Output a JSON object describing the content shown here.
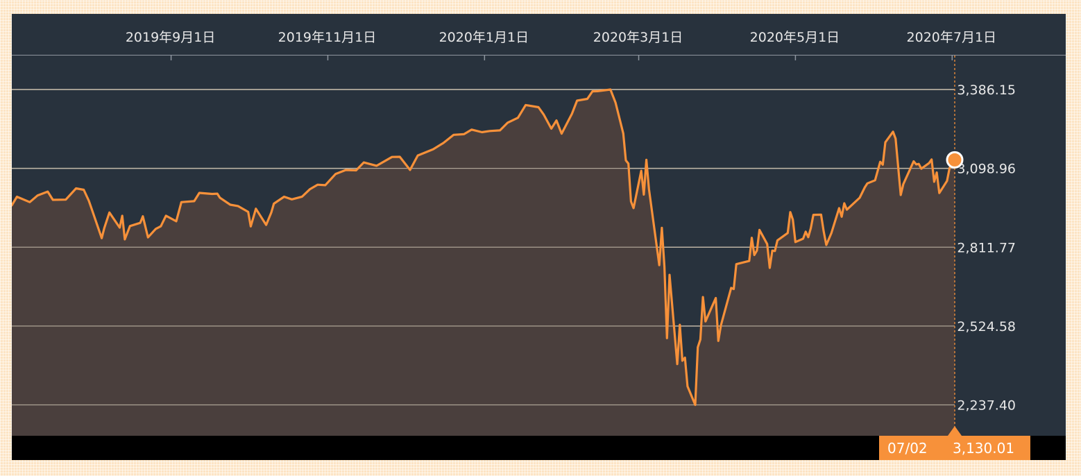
{
  "chart_data": {
    "type": "area",
    "x_tick_labels": [
      "2019年9月1日",
      "2019年11月1日",
      "2020年1月1日",
      "2020年3月1日",
      "2020年5月1日",
      "2020年7月1日"
    ],
    "y_tick_labels": [
      "3,386.15",
      "3,098.96",
      "2,811.77",
      "2,524.58",
      "2,237.40"
    ],
    "y_ticks": [
      3386.15,
      3098.96,
      2811.77,
      2524.58,
      2237.4
    ],
    "ylim": [
      2125,
      3510
    ],
    "xlim": [
      "2019-07-01",
      "2020-07-02"
    ],
    "grid": true,
    "colors": {
      "line": "#f7913a",
      "fill": "#4a3f3d",
      "background": "#28323d",
      "grid": "#c9c0b0"
    },
    "series": [
      {
        "points": [
          [
            "2019-07-01",
            2964.3
          ],
          [
            "2019-07-03",
            2995.8
          ],
          [
            "2019-07-08",
            2975.9
          ],
          [
            "2019-07-11",
            2999.9
          ],
          [
            "2019-07-15",
            3014.3
          ],
          [
            "2019-07-17",
            2984.4
          ],
          [
            "2019-07-22",
            2985.0
          ],
          [
            "2019-07-26",
            3025.9
          ],
          [
            "2019-07-29",
            3020.9
          ],
          [
            "2019-07-31",
            2980.4
          ],
          [
            "2019-08-01",
            2953.6
          ],
          [
            "2019-08-05",
            2844.7
          ],
          [
            "2019-08-06",
            2881.8
          ],
          [
            "2019-08-08",
            2938.1
          ],
          [
            "2019-08-12",
            2883.1
          ],
          [
            "2019-08-13",
            2926.3
          ],
          [
            "2019-08-14",
            2840.6
          ],
          [
            "2019-08-16",
            2888.7
          ],
          [
            "2019-08-20",
            2900.5
          ],
          [
            "2019-08-21",
            2924.4
          ],
          [
            "2019-08-23",
            2847.6
          ],
          [
            "2019-08-26",
            2878.4
          ],
          [
            "2019-08-28",
            2887.9
          ],
          [
            "2019-08-30",
            2926.5
          ],
          [
            "2019-09-03",
            2906.3
          ],
          [
            "2019-09-05",
            2976.0
          ],
          [
            "2019-09-10",
            2979.4
          ],
          [
            "2019-09-12",
            3009.6
          ],
          [
            "2019-09-17",
            3005.7
          ],
          [
            "2019-09-19",
            3006.8
          ],
          [
            "2019-09-20",
            2992.1
          ],
          [
            "2019-09-24",
            2966.6
          ],
          [
            "2019-09-27",
            2961.8
          ],
          [
            "2019-10-01",
            2940.3
          ],
          [
            "2019-10-02",
            2887.6
          ],
          [
            "2019-10-04",
            2952.0
          ],
          [
            "2019-10-08",
            2893.1
          ],
          [
            "2019-10-10",
            2938.1
          ],
          [
            "2019-10-11",
            2970.3
          ],
          [
            "2019-10-15",
            2995.7
          ],
          [
            "2019-10-18",
            2986.2
          ],
          [
            "2019-10-22",
            2995.9
          ],
          [
            "2019-10-25",
            3022.6
          ],
          [
            "2019-10-28",
            3039.4
          ],
          [
            "2019-10-31",
            3037.6
          ],
          [
            "2019-11-04",
            3078.3
          ],
          [
            "2019-11-08",
            3093.1
          ],
          [
            "2019-11-12",
            3091.8
          ],
          [
            "2019-11-15",
            3120.5
          ],
          [
            "2019-11-20",
            3108.5
          ],
          [
            "2019-11-26",
            3140.5
          ],
          [
            "2019-11-29",
            3141.0
          ],
          [
            "2019-12-03",
            3093.2
          ],
          [
            "2019-12-06",
            3145.9
          ],
          [
            "2019-12-12",
            3168.6
          ],
          [
            "2019-12-16",
            3191.5
          ],
          [
            "2019-12-20",
            3221.2
          ],
          [
            "2019-12-24",
            3223.4
          ],
          [
            "2019-12-27",
            3240.0
          ],
          [
            "2019-12-31",
            3230.8
          ],
          [
            "2020-01-03",
            3234.9
          ],
          [
            "2020-01-07",
            3237.2
          ],
          [
            "2020-01-10",
            3265.4
          ],
          [
            "2020-01-14",
            3283.2
          ],
          [
            "2020-01-17",
            3329.6
          ],
          [
            "2020-01-22",
            3321.8
          ],
          [
            "2020-01-24",
            3295.5
          ],
          [
            "2020-01-27",
            3243.6
          ],
          [
            "2020-01-29",
            3273.4
          ],
          [
            "2020-01-31",
            3225.5
          ],
          [
            "2020-02-04",
            3297.6
          ],
          [
            "2020-02-06",
            3345.8
          ],
          [
            "2020-02-10",
            3352.1
          ],
          [
            "2020-02-12",
            3379.5
          ],
          [
            "2020-02-14",
            3380.2
          ],
          [
            "2020-02-19",
            3386.1
          ],
          [
            "2020-02-21",
            3337.8
          ],
          [
            "2020-02-24",
            3225.9
          ],
          [
            "2020-02-25",
            3128.2
          ],
          [
            "2020-02-26",
            3116.4
          ],
          [
            "2020-02-27",
            2978.8
          ],
          [
            "2020-02-28",
            2954.2
          ],
          [
            "2020-03-02",
            3090.2
          ],
          [
            "2020-03-03",
            3003.4
          ],
          [
            "2020-03-04",
            3130.1
          ],
          [
            "2020-03-05",
            3023.9
          ],
          [
            "2020-03-09",
            2746.6
          ],
          [
            "2020-03-10",
            2882.2
          ],
          [
            "2020-03-11",
            2741.4
          ],
          [
            "2020-03-12",
            2480.6
          ],
          [
            "2020-03-13",
            2711.0
          ],
          [
            "2020-03-16",
            2386.1
          ],
          [
            "2020-03-17",
            2529.2
          ],
          [
            "2020-03-18",
            2398.1
          ],
          [
            "2020-03-19",
            2409.4
          ],
          [
            "2020-03-20",
            2304.9
          ],
          [
            "2020-03-23",
            2237.4
          ],
          [
            "2020-03-24",
            2447.3
          ],
          [
            "2020-03-25",
            2475.6
          ],
          [
            "2020-03-26",
            2630.1
          ],
          [
            "2020-03-27",
            2541.5
          ],
          [
            "2020-03-31",
            2626.7
          ],
          [
            "2020-04-01",
            2470.5
          ],
          [
            "2020-04-02",
            2526.9
          ],
          [
            "2020-04-06",
            2663.7
          ],
          [
            "2020-04-07",
            2659.4
          ],
          [
            "2020-04-08",
            2749.9
          ],
          [
            "2020-04-13",
            2761.6
          ],
          [
            "2020-04-14",
            2846.1
          ],
          [
            "2020-04-15",
            2783.4
          ],
          [
            "2020-04-16",
            2799.6
          ],
          [
            "2020-04-17",
            2874.6
          ],
          [
            "2020-04-20",
            2823.2
          ],
          [
            "2020-04-21",
            2736.6
          ],
          [
            "2020-04-22",
            2799.3
          ],
          [
            "2020-04-23",
            2797.8
          ],
          [
            "2020-04-24",
            2836.7
          ],
          [
            "2020-04-28",
            2863.4
          ],
          [
            "2020-04-29",
            2939.5
          ],
          [
            "2020-04-30",
            2912.4
          ],
          [
            "2020-05-01",
            2830.7
          ],
          [
            "2020-05-04",
            2842.7
          ],
          [
            "2020-05-05",
            2868.4
          ],
          [
            "2020-05-06",
            2848.4
          ],
          [
            "2020-05-07",
            2881.2
          ],
          [
            "2020-05-08",
            2929.8
          ],
          [
            "2020-05-11",
            2930.2
          ],
          [
            "2020-05-12",
            2870.1
          ],
          [
            "2020-05-13",
            2820.0
          ],
          [
            "2020-05-15",
            2863.7
          ],
          [
            "2020-05-18",
            2953.9
          ],
          [
            "2020-05-19",
            2922.9
          ],
          [
            "2020-05-20",
            2971.6
          ],
          [
            "2020-05-21",
            2948.5
          ],
          [
            "2020-05-26",
            2991.8
          ],
          [
            "2020-05-28",
            3029.7
          ],
          [
            "2020-05-29",
            3044.3
          ],
          [
            "2020-06-01",
            3055.7
          ],
          [
            "2020-06-03",
            3122.9
          ],
          [
            "2020-06-04",
            3112.4
          ],
          [
            "2020-06-05",
            3193.9
          ],
          [
            "2020-06-08",
            3232.4
          ],
          [
            "2020-06-09",
            3207.2
          ],
          [
            "2020-06-11",
            3002.1
          ],
          [
            "2020-06-12",
            3041.3
          ],
          [
            "2020-06-16",
            3124.7
          ],
          [
            "2020-06-17",
            3113.5
          ],
          [
            "2020-06-18",
            3115.3
          ],
          [
            "2020-06-19",
            3097.7
          ],
          [
            "2020-06-22",
            3117.9
          ],
          [
            "2020-06-23",
            3131.3
          ],
          [
            "2020-06-24",
            3050.3
          ],
          [
            "2020-06-25",
            3083.8
          ],
          [
            "2020-06-26",
            3009.1
          ],
          [
            "2020-06-29",
            3053.2
          ],
          [
            "2020-06-30",
            3100.3
          ],
          [
            "2020-07-01",
            3115.9
          ],
          [
            "2020-07-02",
            3130.0
          ]
        ]
      }
    ],
    "cursor": {
      "date_label": "07/02",
      "value_label": "3,130.01",
      "value": 3130.01
    }
  }
}
